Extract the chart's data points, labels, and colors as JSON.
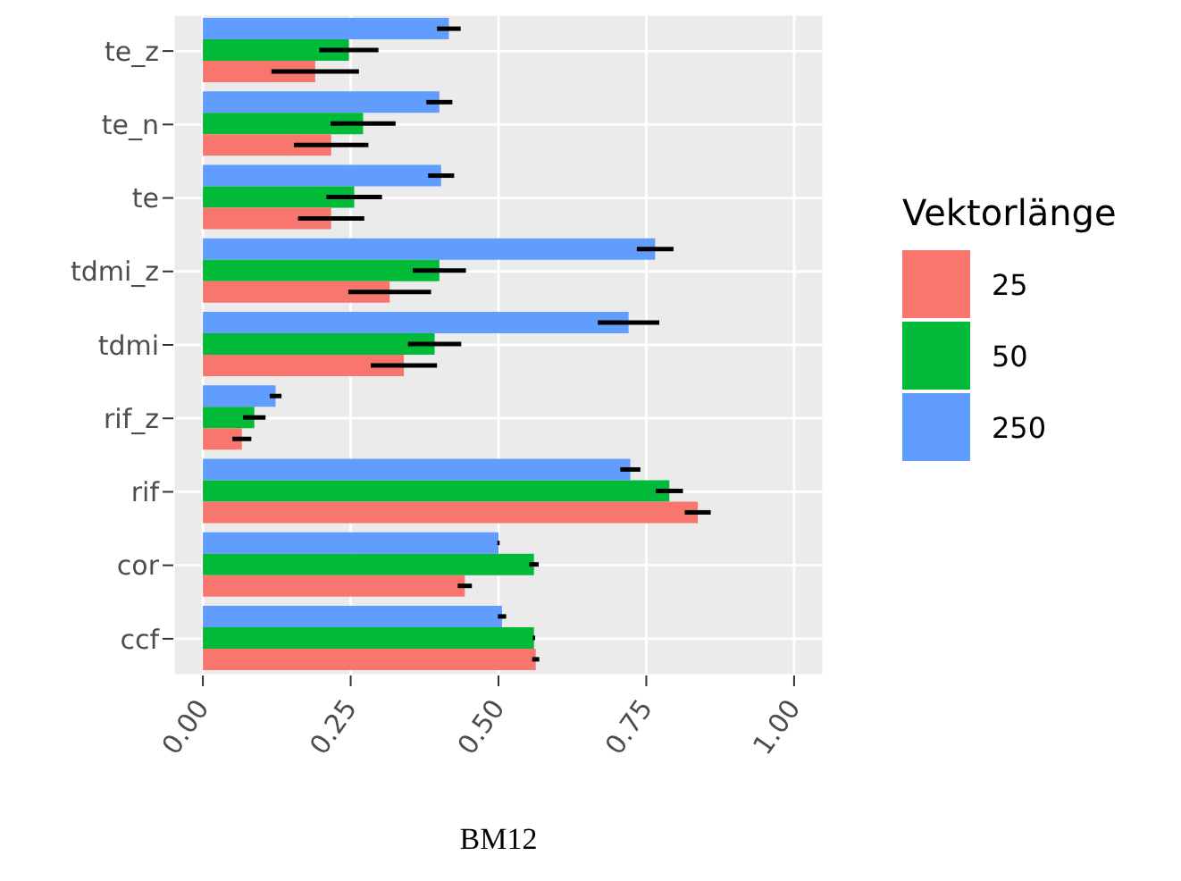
{
  "chart_data": {
    "type": "bar",
    "orientation": "horizontal",
    "xlabel": "BM12",
    "legend_title": "Vektorlänge",
    "legend": "right",
    "grid": true,
    "categories": [
      "te_z",
      "te_n",
      "te",
      "tdmi_z",
      "tdmi",
      "rif_z",
      "rif",
      "cor",
      "ccf"
    ],
    "xlim": [
      -0.05,
      1.05
    ],
    "xticks": [
      {
        "value": 0,
        "label": "0.00"
      },
      {
        "value": 0.25,
        "label": "0.25"
      },
      {
        "value": 0.5,
        "label": "0.50"
      },
      {
        "value": 0.75,
        "label": "0.75"
      },
      {
        "value": 1,
        "label": "1.00"
      }
    ],
    "series": [
      {
        "name": "25",
        "color": "#f8766d",
        "values": [
          0.19,
          0.217,
          0.217,
          0.316,
          0.34,
          0.066,
          0.837,
          0.443,
          0.563
        ],
        "errors": [
          0.074,
          0.063,
          0.056,
          0.07,
          0.056,
          0.016,
          0.022,
          0.012,
          0.006
        ]
      },
      {
        "name": "50",
        "color": "#00ba38",
        "values": [
          0.247,
          0.271,
          0.256,
          0.4,
          0.392,
          0.087,
          0.789,
          0.56,
          0.56
        ],
        "errors": [
          0.05,
          0.055,
          0.047,
          0.045,
          0.045,
          0.019,
          0.023,
          0.008,
          0.002
        ]
      },
      {
        "name": "250",
        "color": "#619cff",
        "values": [
          0.416,
          0.4,
          0.403,
          0.765,
          0.72,
          0.123,
          0.723,
          0.5,
          0.506
        ],
        "errors": [
          0.02,
          0.022,
          0.022,
          0.031,
          0.052,
          0.01,
          0.017,
          0.002,
          0.007
        ]
      }
    ]
  }
}
